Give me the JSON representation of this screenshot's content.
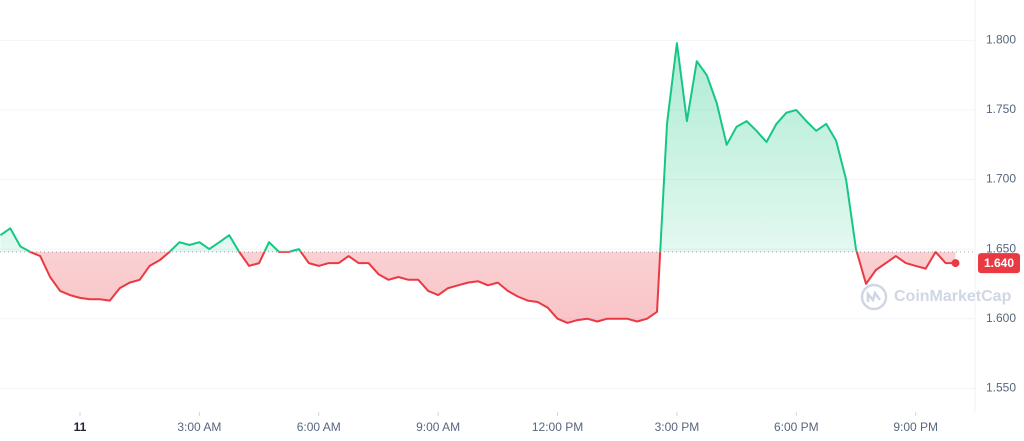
{
  "chart_data": {
    "type": "line",
    "x": [
      -2,
      -1.75,
      -1.5,
      -1.25,
      -1,
      -0.75,
      -0.5,
      -0.25,
      0,
      0.25,
      0.5,
      0.75,
      1,
      1.25,
      1.5,
      1.75,
      2,
      2.25,
      2.5,
      2.75,
      3,
      3.25,
      3.5,
      3.75,
      4,
      4.25,
      4.5,
      4.75,
      5,
      5.25,
      5.5,
      5.75,
      6,
      6.25,
      6.5,
      6.75,
      7,
      7.25,
      7.5,
      7.75,
      8,
      8.25,
      8.5,
      8.75,
      9,
      9.25,
      9.5,
      9.75,
      10,
      10.25,
      10.5,
      10.75,
      11,
      11.25,
      11.5,
      11.75,
      12,
      12.25,
      12.5,
      12.75,
      13,
      13.25,
      13.5,
      13.75,
      14,
      14.25,
      14.5,
      14.75,
      15,
      15.25,
      15.5,
      15.75,
      16,
      16.25,
      16.5,
      16.75,
      17,
      17.25,
      17.5,
      17.75,
      18,
      18.25,
      18.5,
      18.75,
      19,
      19.25,
      19.5,
      19.75,
      20,
      20.25,
      20.5,
      20.75,
      21,
      21.25,
      21.5,
      21.75,
      22
    ],
    "series": [
      {
        "color_up": "#16c784",
        "color_down": "#ea3943",
        "values": [
          1.66,
          1.665,
          1.652,
          1.648,
          1.645,
          1.63,
          1.62,
          1.617,
          1.615,
          1.614,
          1.614,
          1.613,
          1.622,
          1.626,
          1.628,
          1.638,
          1.642,
          1.648,
          1.655,
          1.653,
          1.655,
          1.65,
          1.655,
          1.66,
          1.648,
          1.638,
          1.64,
          1.655,
          1.648,
          1.648,
          1.65,
          1.64,
          1.638,
          1.64,
          1.64,
          1.645,
          1.64,
          1.64,
          1.632,
          1.628,
          1.63,
          1.628,
          1.628,
          1.62,
          1.617,
          1.622,
          1.624,
          1.626,
          1.627,
          1.624,
          1.626,
          1.62,
          1.616,
          1.613,
          1.612,
          1.608,
          1.6,
          1.597,
          1.599,
          1.6,
          1.598,
          1.6,
          1.6,
          1.6,
          1.598,
          1.6,
          1.605,
          1.74,
          1.798,
          1.742,
          1.785,
          1.775,
          1.755,
          1.725,
          1.738,
          1.742,
          1.735,
          1.727,
          1.74,
          1.748,
          1.75,
          1.742,
          1.735,
          1.74,
          1.728,
          1.7,
          1.65,
          1.625,
          1.635,
          1.64,
          1.645,
          1.64,
          1.638,
          1.636,
          1.648,
          1.64,
          1.64
        ]
      }
    ],
    "baseline": 1.648,
    "current_price": {
      "value": 1.64,
      "label": "1.640"
    },
    "watermark": "CoinMarketCap",
    "xlim": [
      -2.01,
      22.49
    ],
    "xticks": [
      {
        "value": 0,
        "label": "11"
      },
      {
        "value": 3,
        "label": "3:00 AM"
      },
      {
        "value": 6,
        "label": "6:00 AM"
      },
      {
        "value": 9,
        "label": "9:00 AM"
      },
      {
        "value": 12,
        "label": "12:00 PM"
      },
      {
        "value": 15,
        "label": "3:00 PM"
      },
      {
        "value": 18,
        "label": "6:00 PM"
      },
      {
        "value": 21,
        "label": "9:00 PM"
      }
    ],
    "ylim": [
      1.533,
      1.829
    ],
    "yticks": [
      {
        "value": 1.55,
        "label": "1.550"
      },
      {
        "value": 1.6,
        "label": "1.600"
      },
      {
        "value": 1.65,
        "label": "1.650"
      },
      {
        "value": 1.7,
        "label": "1.700"
      },
      {
        "value": 1.75,
        "label": "1.750"
      },
      {
        "value": 1.8,
        "label": "1.800"
      }
    ],
    "grid": true
  }
}
